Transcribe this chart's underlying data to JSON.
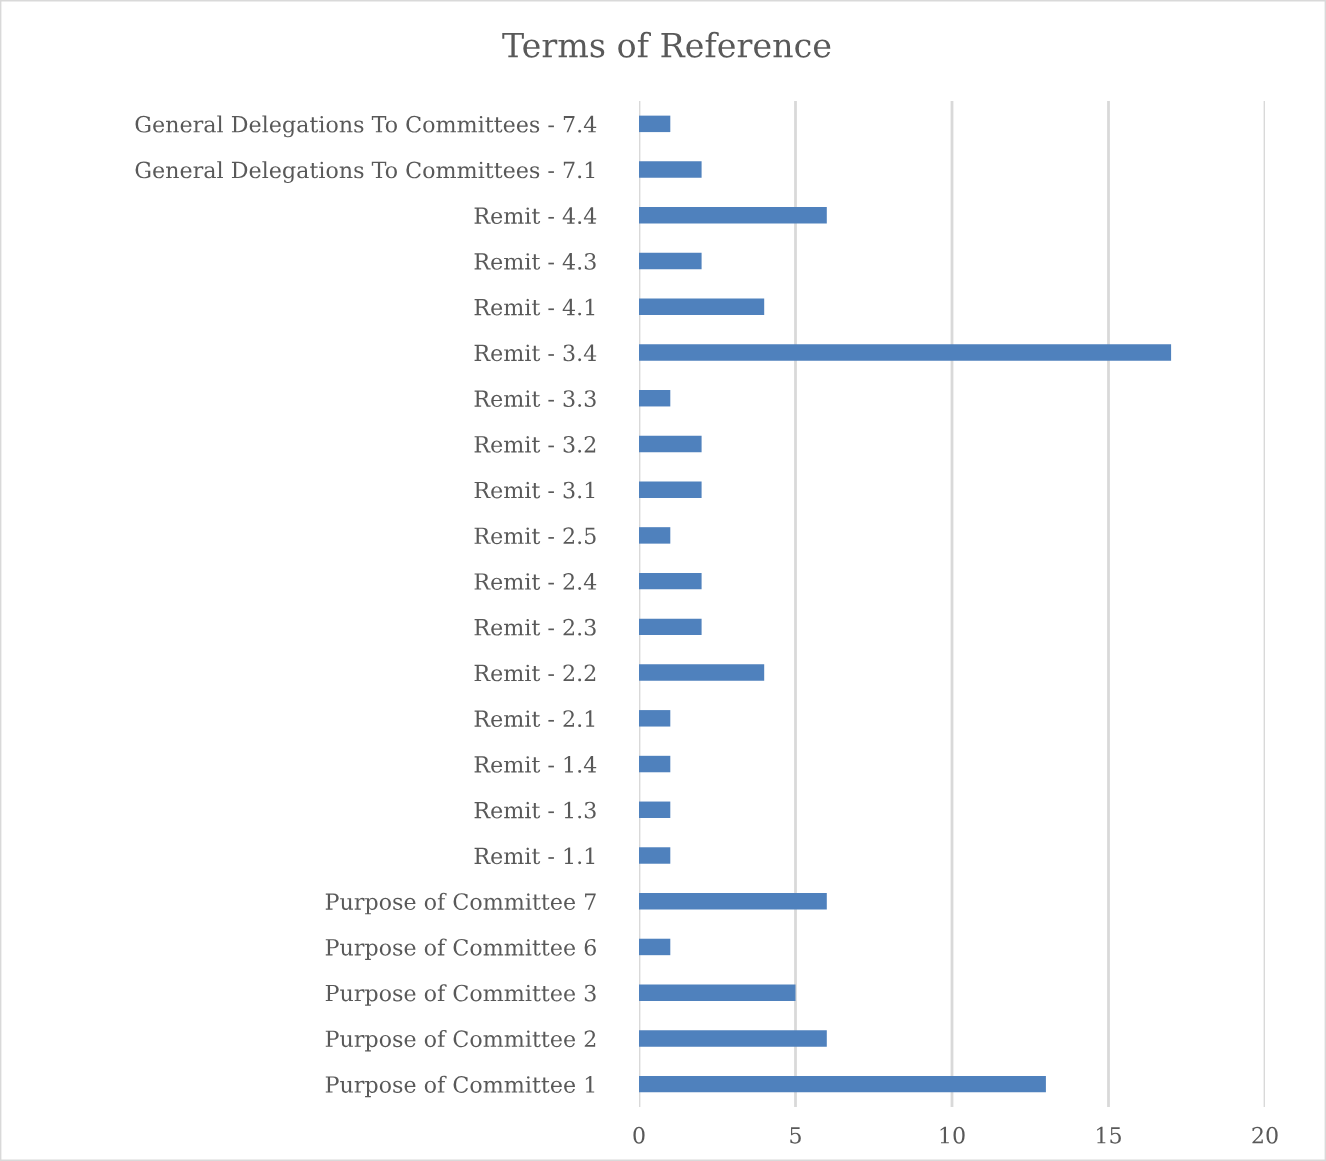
{
  "chart_data": {
    "type": "bar",
    "orientation": "horizontal",
    "title": "Terms of Reference",
    "categories": [
      "General Delegations To Committees - 7.4",
      "General Delegations To Committees - 7.1",
      "Remit - 4.4",
      "Remit - 4.3",
      "Remit - 4.1",
      "Remit - 3.4",
      "Remit - 3.3",
      "Remit - 3.2",
      "Remit - 3.1",
      "Remit - 2.5",
      "Remit - 2.4",
      "Remit - 2.3",
      "Remit - 2.2",
      "Remit - 2.1",
      "Remit - 1.4",
      "Remit - 1.3",
      "Remit - 1.1",
      "Purpose of Committee 7",
      "Purpose of Committee 6",
      "Purpose of Committee 3",
      "Purpose of Committee 2",
      "Purpose of Committee 1"
    ],
    "values": [
      1,
      2,
      6,
      2,
      4,
      17,
      1,
      2,
      2,
      1,
      2,
      2,
      4,
      1,
      1,
      1,
      1,
      6,
      1,
      5,
      6,
      13
    ],
    "color": "#4f81bd",
    "xlim": [
      0,
      20
    ],
    "xticks": [
      0,
      5,
      10,
      15,
      20
    ],
    "grid": "x",
    "legend": false
  }
}
